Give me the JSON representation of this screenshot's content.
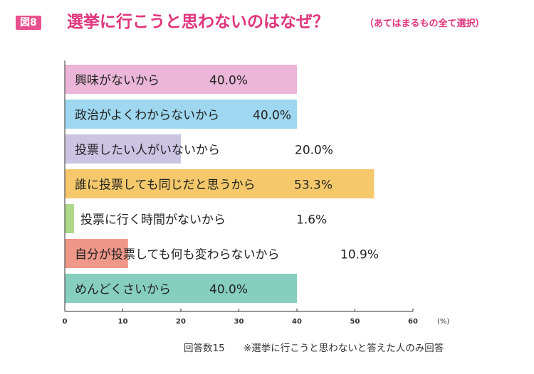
{
  "header": {
    "badge": "図8",
    "title": "選挙に行こうと思わないのはなぜ？",
    "subtitle": "（あてはまるもの全て選択）"
  },
  "chart_data": {
    "type": "bar",
    "orientation": "horizontal",
    "categories": [
      "興味がないから",
      "政治がよくわからないから",
      "投票したい人がいないから",
      "誰に投票しても同じだと思うから",
      "投票に行く時間がないから",
      "自分が投票しても何も変わらないから",
      "めんどくさいから"
    ],
    "values": [
      40.0,
      40.0,
      20.0,
      53.3,
      1.6,
      10.9,
      40.0
    ],
    "value_labels": [
      "40.0%",
      "40.0%",
      "20.0%",
      "53.3%",
      "1.6%",
      "10.9%",
      "40.0%"
    ],
    "colors": [
      "#ebb6d8",
      "#9ed7ef",
      "#cbc4e3",
      "#f5c96b",
      "#aed88a",
      "#ef9788",
      "#86cfbf"
    ],
    "xlim": [
      0,
      60
    ],
    "xticks": [
      "0",
      "10",
      "20",
      "30",
      "40",
      "50",
      "60"
    ],
    "xunit": "(%)",
    "grid": false
  },
  "footnote": {
    "count": "回答数15",
    "note": "※選挙に行こうと思わないと答えた人のみ回答"
  }
}
